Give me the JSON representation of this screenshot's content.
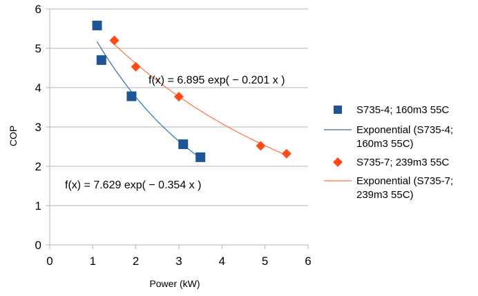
{
  "chart_data": {
    "type": "scatter",
    "xlabel": "Power (kW)",
    "ylabel": "COP",
    "xlim": [
      0,
      6
    ],
    "ylim": [
      0,
      6
    ],
    "x_ticks": [
      "0",
      "1",
      "2",
      "3",
      "4",
      "5",
      "6"
    ],
    "y_ticks": [
      "0",
      "1",
      "2",
      "3",
      "4",
      "5",
      "6"
    ],
    "grid": "horizontal",
    "legend_position": "right",
    "series": [
      {
        "name": "S735-4; 160m3 55C",
        "marker": "square",
        "color": "#1f5594",
        "points": [
          [
            1.1,
            5.58
          ],
          [
            1.2,
            4.7
          ],
          [
            1.9,
            3.78
          ],
          [
            3.1,
            2.56
          ],
          [
            3.5,
            2.23
          ]
        ]
      },
      {
        "name": "S735-7; 239m3 55C",
        "marker": "diamond",
        "color": "#ff4a17",
        "points": [
          [
            1.5,
            5.2
          ],
          [
            2.0,
            4.53
          ],
          [
            3.0,
            3.77
          ],
          [
            4.9,
            2.52
          ],
          [
            5.5,
            2.32
          ]
        ]
      }
    ],
    "trendlines": [
      {
        "name_line1": "Exponential (S735-4;",
        "name_line2": "160m3 55C)",
        "type": "exponential",
        "a": 7.629,
        "b": -0.354,
        "x_range": [
          1.1,
          3.5
        ],
        "color": "#2e6db4",
        "equation": "f(x) = 7.629 exp( − 0.354 x )"
      },
      {
        "name_line1": "Exponential (S735-7;",
        "name_line2": "239m3 55C)",
        "type": "exponential",
        "a": 6.895,
        "b": -0.201,
        "x_range": [
          1.5,
          5.5
        ],
        "color": "#ff7043",
        "equation": "f(x) = 6.895 exp( − 0.201 x )"
      }
    ]
  }
}
